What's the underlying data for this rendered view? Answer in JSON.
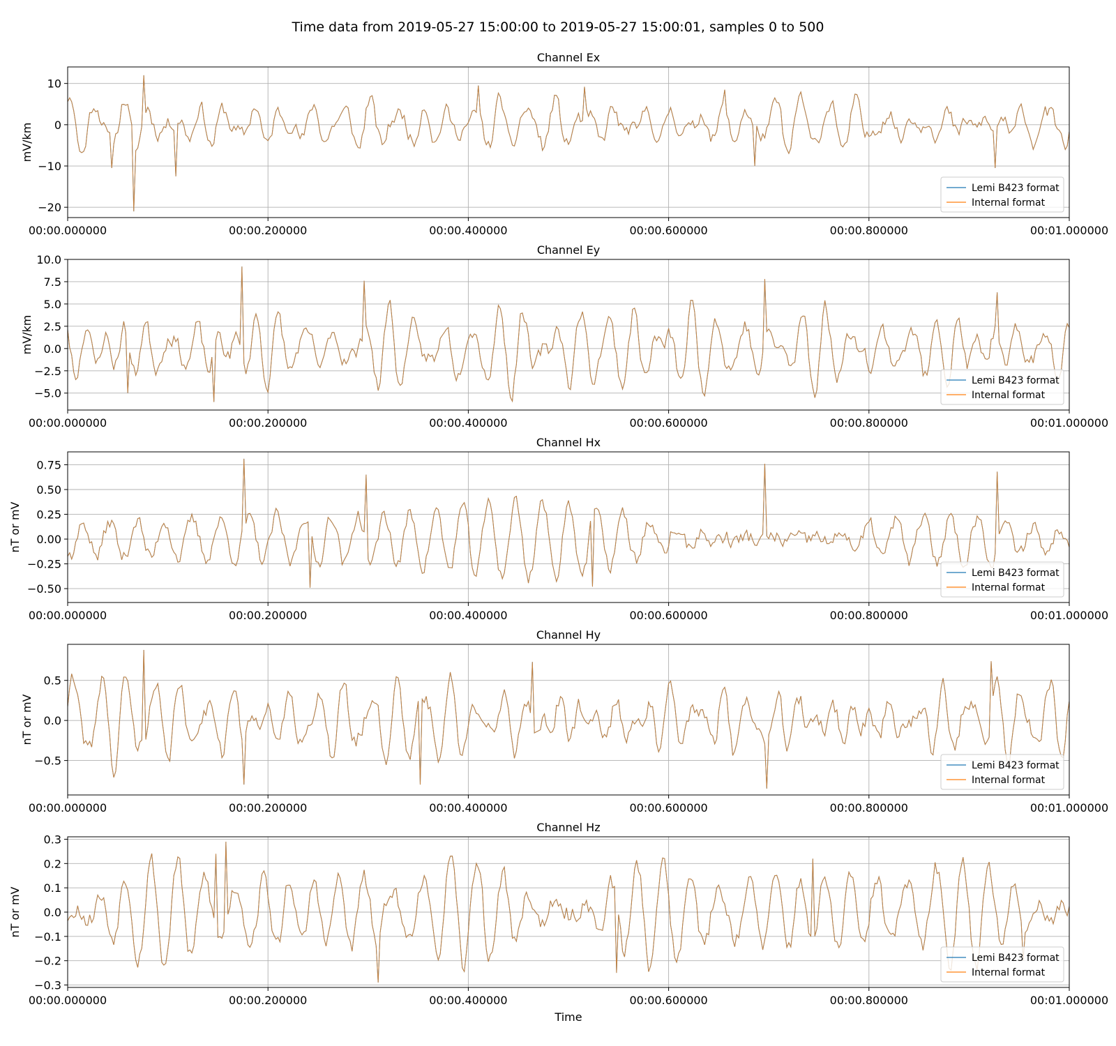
{
  "figure": {
    "title": "Time data from 2019-05-27 15:00:00 to 2019-05-27 15:00:01, samples 0 to 500",
    "xlabel": "Time"
  },
  "colors": {
    "lemi": "#1f77b4",
    "internal": "#ff7f0e",
    "overlap_line": "#c7823f",
    "grid": "#b0b0b0"
  },
  "chart_data": [
    {
      "type": "line",
      "title": "Channel Ex",
      "ylabel": "mV/km",
      "xlabel": "",
      "xlim": [
        0,
        1
      ],
      "xticks": [
        0,
        0.2,
        0.4,
        0.6,
        0.8,
        1.0
      ],
      "xticklabels": [
        "00:00.000000",
        "00:00.200000",
        "00:00.400000",
        "00:00.600000",
        "00:00.800000",
        "00:01.000000"
      ],
      "ylim": [
        -22.5,
        14
      ],
      "yticks": [
        10,
        0,
        -10,
        -20
      ],
      "yticklabels": [
        "10",
        "0",
        "−10",
        "−20"
      ],
      "grid": true,
      "legend": "lower right",
      "signal": {
        "samples": 501,
        "amplitude": 4.5,
        "noise": 1.6,
        "seed": 11
      },
      "spikes": [
        [
          0.066,
          -21.0
        ],
        [
          0.075,
          12.0
        ],
        [
          0.108,
          -12.5
        ],
        [
          0.044,
          -10.5
        ],
        [
          0.41,
          9.5
        ],
        [
          0.686,
          -10.0
        ],
        [
          0.926,
          -10.5
        ],
        [
          0.515,
          9.2
        ],
        [
          0.656,
          8.5
        ]
      ],
      "series": [
        {
          "name": "Lemi B423 format",
          "color": "#1f77b4"
        },
        {
          "name": "Internal format",
          "color": "#ff7f0e"
        }
      ]
    },
    {
      "type": "line",
      "title": "Channel Ey",
      "ylabel": "mV/km",
      "xlabel": "",
      "xlim": [
        0,
        1
      ],
      "xticks": [
        0,
        0.2,
        0.4,
        0.6,
        0.8,
        1.0
      ],
      "xticklabels": [
        "00:00.000000",
        "00:00.200000",
        "00:00.400000",
        "00:00.600000",
        "00:00.800000",
        "00:01.000000"
      ],
      "ylim": [
        -6.9,
        10.0
      ],
      "yticks": [
        10.0,
        7.5,
        5.0,
        2.5,
        0.0,
        -2.5,
        -5.0
      ],
      "yticklabels": [
        "10.0",
        "7.5",
        "5.0",
        "2.5",
        "0.0",
        "−2.5",
        "−5.0"
      ],
      "grid": true,
      "legend": "lower right",
      "signal": {
        "samples": 501,
        "amplitude": 3.3,
        "noise": 0.8,
        "seed": 23
      },
      "spikes": [
        [
          0.174,
          9.2
        ],
        [
          0.296,
          7.6
        ],
        [
          0.696,
          7.8
        ],
        [
          0.145,
          -6.0
        ],
        [
          0.928,
          6.3
        ],
        [
          0.06,
          -5.0
        ]
      ],
      "series": [
        {
          "name": "Lemi B423 format",
          "color": "#1f77b4"
        },
        {
          "name": "Internal format",
          "color": "#ff7f0e"
        }
      ]
    },
    {
      "type": "line",
      "title": "Channel Hx",
      "ylabel": "nT or mV",
      "xlabel": "",
      "xlim": [
        0,
        1
      ],
      "xticks": [
        0,
        0.2,
        0.4,
        0.6,
        0.8,
        1.0
      ],
      "xticklabels": [
        "00:00.000000",
        "00:00.200000",
        "00:00.400000",
        "00:00.600000",
        "00:00.800000",
        "00:01.000000"
      ],
      "ylim": [
        -0.64,
        0.88
      ],
      "yticks": [
        0.75,
        0.5,
        0.25,
        0.0,
        -0.25,
        -0.5
      ],
      "yticklabels": [
        "0.75",
        "0.50",
        "0.25",
        "0.00",
        "−0.25",
        "−0.50"
      ],
      "grid": true,
      "legend": "lower right",
      "signal": {
        "samples": 501,
        "amplitude": 0.27,
        "noise": 0.07,
        "seed": 37
      },
      "spikes": [
        [
          0.175,
          0.81
        ],
        [
          0.696,
          0.76
        ],
        [
          0.297,
          0.65
        ],
        [
          0.928,
          0.68
        ],
        [
          0.242,
          -0.49
        ],
        [
          0.524,
          -0.48
        ]
      ],
      "series": [
        {
          "name": "Lemi B423 format",
          "color": "#1f77b4"
        },
        {
          "name": "Internal format",
          "color": "#ff7f0e"
        }
      ]
    },
    {
      "type": "line",
      "title": "Channel Hy",
      "ylabel": "nT or mV",
      "xlabel": "",
      "xlim": [
        0,
        1
      ],
      "xticks": [
        0,
        0.2,
        0.4,
        0.6,
        0.8,
        1.0
      ],
      "xticklabels": [
        "00:00.000000",
        "00:00.200000",
        "00:00.400000",
        "00:00.600000",
        "00:00.800000",
        "00:01.000000"
      ],
      "ylim": [
        -0.93,
        0.95
      ],
      "yticks": [
        0.5,
        0.0,
        -0.5
      ],
      "yticklabels": [
        "0.5",
        "0.0",
        "−0.5"
      ],
      "grid": true,
      "legend": "lower right",
      "signal": {
        "samples": 501,
        "amplitude": 0.42,
        "noise": 0.1,
        "seed": 41
      },
      "spikes": [
        [
          0.076,
          0.88
        ],
        [
          0.175,
          -0.8
        ],
        [
          0.352,
          -0.8
        ],
        [
          0.697,
          -0.85
        ],
        [
          0.922,
          0.74
        ],
        [
          0.464,
          0.73
        ]
      ],
      "series": [
        {
          "name": "Lemi B423 format",
          "color": "#1f77b4"
        },
        {
          "name": "Internal format",
          "color": "#ff7f0e"
        }
      ]
    },
    {
      "type": "line",
      "title": "Channel Hz",
      "ylabel": "nT or mV",
      "xlabel": "Time",
      "xlim": [
        0,
        1
      ],
      "xticks": [
        0,
        0.2,
        0.4,
        0.6,
        0.8,
        1.0
      ],
      "xticklabels": [
        "00:00.000000",
        "00:00.200000",
        "00:00.400000",
        "00:00.600000",
        "00:00.800000",
        "00:01.000000"
      ],
      "ylim": [
        -0.31,
        0.31
      ],
      "yticks": [
        0.3,
        0.2,
        0.1,
        0.0,
        -0.1,
        -0.2,
        -0.3
      ],
      "yticklabels": [
        "0.3",
        "0.2",
        "0.1",
        "0.0",
        "−0.1",
        "−0.2",
        "−0.3"
      ],
      "grid": true,
      "legend": "lower right",
      "signal": {
        "samples": 501,
        "amplitude": 0.14,
        "noise": 0.035,
        "seed": 53
      },
      "spikes": [
        [
          0.158,
          0.29
        ],
        [
          0.31,
          -0.29
        ],
        [
          0.743,
          0.22
        ],
        [
          0.547,
          -0.25
        ],
        [
          0.148,
          0.24
        ],
        [
          0.954,
          -0.2
        ]
      ],
      "series": [
        {
          "name": "Lemi B423 format",
          "color": "#1f77b4"
        },
        {
          "name": "Internal format",
          "color": "#ff7f0e"
        }
      ]
    }
  ]
}
